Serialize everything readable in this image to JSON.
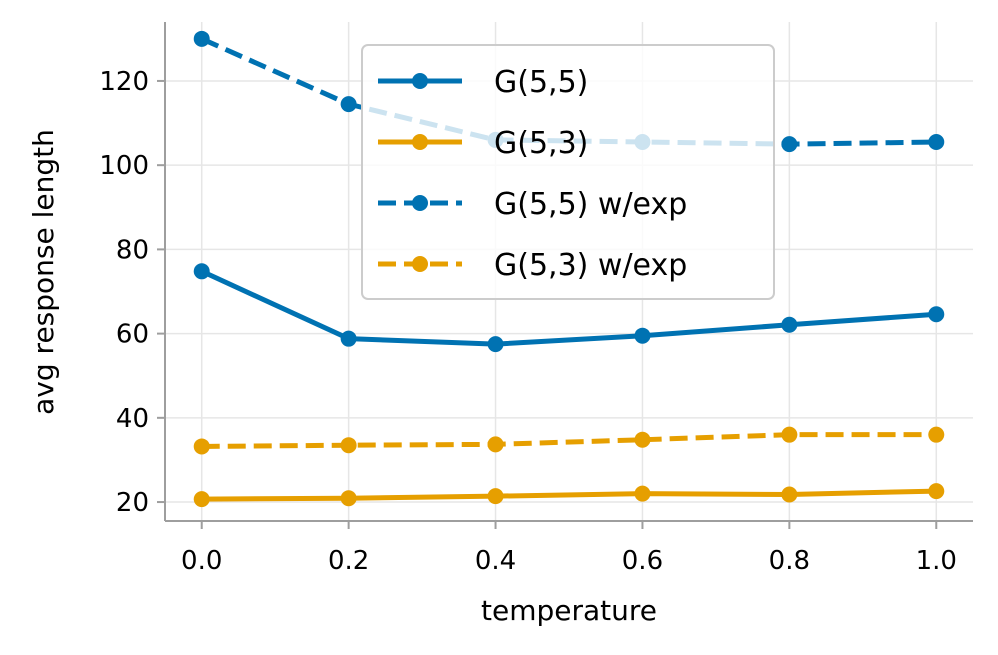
{
  "chart_data": {
    "type": "line",
    "title": "",
    "xlabel": "temperature",
    "ylabel": "avg response length",
    "x": [
      0.0,
      0.2,
      0.4,
      0.6,
      0.8,
      1.0
    ],
    "xticks": [
      "0.0",
      "0.2",
      "0.4",
      "0.6",
      "0.8",
      "1.0"
    ],
    "yticks": [
      "20",
      "40",
      "60",
      "80",
      "100",
      "120"
    ],
    "xlim": [
      -0.05,
      1.05
    ],
    "ylim": [
      15.5,
      134
    ],
    "grid": true,
    "legend_position": "top-center",
    "series": [
      {
        "name": "G(5,5)",
        "color": "#0072B2",
        "style": "solid",
        "values": [
          74.8,
          58.8,
          57.5,
          59.5,
          62.1,
          64.6
        ]
      },
      {
        "name": "G(5,3)",
        "color": "#E69F00",
        "style": "solid",
        "values": [
          20.7,
          20.9,
          21.4,
          22.0,
          21.8,
          22.6
        ]
      },
      {
        "name": "G(5,5) w/exp",
        "color": "#0072B2",
        "style": "dashed",
        "values": [
          130.0,
          114.5,
          106.0,
          105.5,
          105.0,
          105.5
        ]
      },
      {
        "name": "G(5,3) w/exp",
        "color": "#E69F00",
        "style": "dashed",
        "values": [
          33.2,
          33.5,
          33.7,
          34.8,
          36.0,
          36.0
        ]
      }
    ]
  }
}
